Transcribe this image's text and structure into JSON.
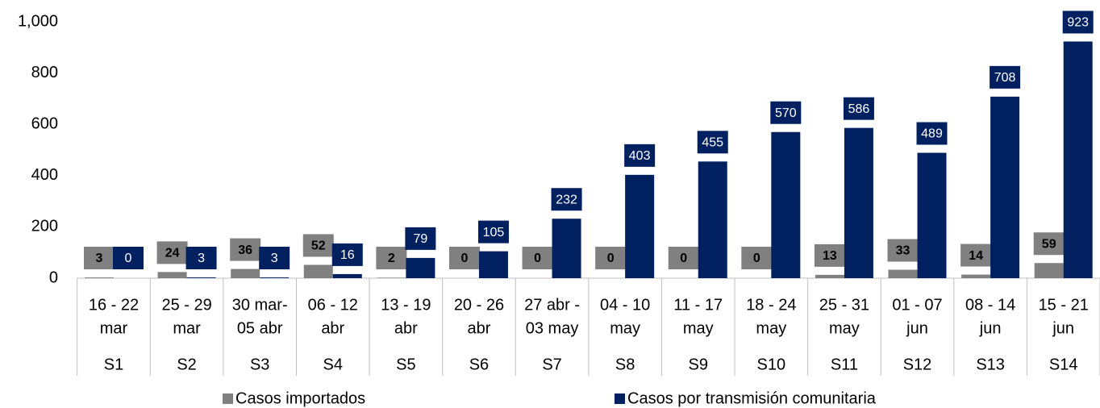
{
  "chart_data": {
    "type": "bar",
    "categories": [
      [
        "16 - 22",
        "mar"
      ],
      [
        "25 - 29",
        "mar"
      ],
      [
        "30 mar-",
        "05 abr"
      ],
      [
        "06 - 12",
        "abr"
      ],
      [
        "13 - 19",
        "abr"
      ],
      [
        "20 - 26",
        "abr"
      ],
      [
        "27 abr -",
        "03 may"
      ],
      [
        "04 - 10",
        "may"
      ],
      [
        "11 - 17",
        "may"
      ],
      [
        "18 - 24",
        "may"
      ],
      [
        "25 - 31",
        "may"
      ],
      [
        "01 - 07",
        "jun"
      ],
      [
        "08 - 14",
        "jun"
      ],
      [
        "15 - 21",
        "jun"
      ]
    ],
    "weeks": [
      "S1",
      "S2",
      "S3",
      "S4",
      "S5",
      "S6",
      "S7",
      "S8",
      "S9",
      "S10",
      "S11",
      "S12",
      "S13",
      "S14"
    ],
    "series": [
      {
        "name": "Casos importados",
        "color": "#808080",
        "values": [
          3,
          24,
          36,
          52,
          2,
          0,
          0,
          0,
          0,
          0,
          13,
          33,
          14,
          59
        ]
      },
      {
        "name": "Casos por transmisión comunitaria",
        "color": "#002060",
        "values": [
          0,
          3,
          3,
          16,
          79,
          105,
          232,
          403,
          455,
          570,
          586,
          489,
          708,
          923
        ]
      }
    ],
    "ylim": [
      0,
      1000
    ],
    "yticks": [
      0,
      200,
      400,
      600,
      800,
      {
        "value": 1000,
        "label": "1,000"
      }
    ],
    "grid": false,
    "legend": "bottom"
  }
}
